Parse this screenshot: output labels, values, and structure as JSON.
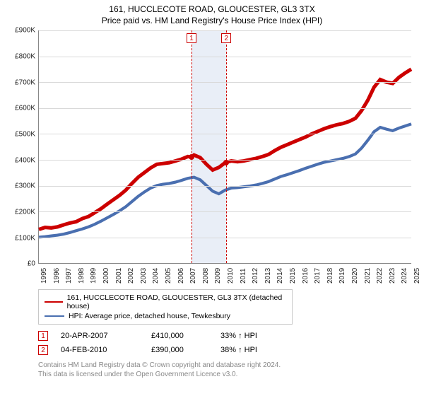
{
  "title": {
    "address": "161, HUCCLECOTE ROAD, GLOUCESTER, GL3 3TX",
    "subtitle": "Price paid vs. HM Land Registry's House Price Index (HPI)"
  },
  "chart": {
    "type": "line",
    "background_color": "#ffffff",
    "grid_color": "#d9d9d9",
    "axis_color": "#888888",
    "ylabel_prefix": "£",
    "ylim": [
      0,
      900
    ],
    "ytick_step": 100,
    "yticks_labels": [
      "£0",
      "£100K",
      "£200K",
      "£300K",
      "£400K",
      "£500K",
      "£600K",
      "£700K",
      "£800K",
      "£900K"
    ],
    "xlim": [
      1995,
      2025
    ],
    "xticks": [
      1995,
      1996,
      1997,
      1998,
      1999,
      2000,
      2001,
      2002,
      2003,
      2004,
      2005,
      2006,
      2007,
      2008,
      2009,
      2010,
      2011,
      2012,
      2013,
      2014,
      2015,
      2016,
      2017,
      2018,
      2019,
      2020,
      2021,
      2022,
      2023,
      2024,
      2025
    ],
    "tick_fontsize": 10,
    "series": [
      {
        "name": "161, HUCCLECOTE ROAD, GLOUCESTER, GL3 3TX (detached house)",
        "color": "#cc0000",
        "line_width": 1.6,
        "data": [
          [
            1995,
            130
          ],
          [
            1995.5,
            138
          ],
          [
            1996,
            136
          ],
          [
            1996.5,
            140
          ],
          [
            1997,
            148
          ],
          [
            1997.5,
            155
          ],
          [
            1998,
            160
          ],
          [
            1998.5,
            172
          ],
          [
            1999,
            180
          ],
          [
            1999.5,
            195
          ],
          [
            2000,
            210
          ],
          [
            2000.5,
            228
          ],
          [
            2001,
            245
          ],
          [
            2001.5,
            262
          ],
          [
            2002,
            282
          ],
          [
            2002.5,
            308
          ],
          [
            2003,
            332
          ],
          [
            2003.5,
            350
          ],
          [
            2004,
            368
          ],
          [
            2004.5,
            382
          ],
          [
            2005,
            385
          ],
          [
            2005.5,
            388
          ],
          [
            2006,
            395
          ],
          [
            2006.5,
            402
          ],
          [
            2007,
            412
          ],
          [
            2007.3,
            410
          ],
          [
            2007.5,
            418
          ],
          [
            2008,
            408
          ],
          [
            2008.5,
            382
          ],
          [
            2009,
            360
          ],
          [
            2009.5,
            370
          ],
          [
            2010,
            388
          ],
          [
            2010.1,
            390
          ],
          [
            2010.5,
            395
          ],
          [
            2011,
            392
          ],
          [
            2011.5,
            395
          ],
          [
            2012,
            400
          ],
          [
            2012.5,
            405
          ],
          [
            2013,
            412
          ],
          [
            2013.5,
            420
          ],
          [
            2014,
            435
          ],
          [
            2014.5,
            448
          ],
          [
            2015,
            458
          ],
          [
            2015.5,
            468
          ],
          [
            2016,
            478
          ],
          [
            2016.5,
            488
          ],
          [
            2017,
            500
          ],
          [
            2017.5,
            510
          ],
          [
            2018,
            520
          ],
          [
            2018.5,
            528
          ],
          [
            2019,
            535
          ],
          [
            2019.5,
            540
          ],
          [
            2020,
            548
          ],
          [
            2020.5,
            560
          ],
          [
            2021,
            590
          ],
          [
            2021.5,
            630
          ],
          [
            2022,
            680
          ],
          [
            2022.5,
            710
          ],
          [
            2023,
            700
          ],
          [
            2023.5,
            695
          ],
          [
            2024,
            718
          ],
          [
            2024.5,
            735
          ],
          [
            2025,
            750
          ]
        ]
      },
      {
        "name": "HPI: Average price, detached house, Tewkesbury",
        "color": "#4a6fb0",
        "line_width": 1.3,
        "data": [
          [
            1995,
            100
          ],
          [
            1995.5,
            102
          ],
          [
            1996,
            105
          ],
          [
            1996.5,
            108
          ],
          [
            1997,
            112
          ],
          [
            1997.5,
            118
          ],
          [
            1998,
            125
          ],
          [
            1998.5,
            132
          ],
          [
            1999,
            140
          ],
          [
            1999.5,
            150
          ],
          [
            2000,
            162
          ],
          [
            2000.5,
            175
          ],
          [
            2001,
            188
          ],
          [
            2001.5,
            202
          ],
          [
            2002,
            218
          ],
          [
            2002.5,
            238
          ],
          [
            2003,
            258
          ],
          [
            2003.5,
            275
          ],
          [
            2004,
            290
          ],
          [
            2004.5,
            300
          ],
          [
            2005,
            305
          ],
          [
            2005.5,
            308
          ],
          [
            2006,
            313
          ],
          [
            2006.5,
            320
          ],
          [
            2007,
            328
          ],
          [
            2007.5,
            332
          ],
          [
            2008,
            322
          ],
          [
            2008.5,
            300
          ],
          [
            2009,
            278
          ],
          [
            2009.5,
            268
          ],
          [
            2010,
            282
          ],
          [
            2010.5,
            290
          ],
          [
            2011,
            292
          ],
          [
            2011.5,
            295
          ],
          [
            2012,
            298
          ],
          [
            2012.5,
            302
          ],
          [
            2013,
            308
          ],
          [
            2013.5,
            315
          ],
          [
            2014,
            325
          ],
          [
            2014.5,
            335
          ],
          [
            2015,
            342
          ],
          [
            2015.5,
            350
          ],
          [
            2016,
            358
          ],
          [
            2016.5,
            367
          ],
          [
            2017,
            375
          ],
          [
            2017.5,
            383
          ],
          [
            2018,
            390
          ],
          [
            2018.5,
            395
          ],
          [
            2019,
            400
          ],
          [
            2019.5,
            405
          ],
          [
            2020,
            412
          ],
          [
            2020.5,
            422
          ],
          [
            2021,
            445
          ],
          [
            2021.5,
            475
          ],
          [
            2022,
            508
          ],
          [
            2022.5,
            525
          ],
          [
            2023,
            518
          ],
          [
            2023.5,
            512
          ],
          [
            2024,
            522
          ],
          [
            2024.5,
            530
          ],
          [
            2025,
            538
          ]
        ]
      }
    ],
    "shaded_band": {
      "x_from": 2007.3,
      "x_to": 2010.1,
      "fill": "#e9eef7"
    },
    "event_markers": [
      {
        "num": "1",
        "x": 2007.3,
        "y": 410,
        "dot_color": "#cc0000"
      },
      {
        "num": "2",
        "x": 2010.1,
        "y": 390,
        "dot_color": "#cc0000"
      }
    ]
  },
  "legend": {
    "items": [
      {
        "color": "#cc0000",
        "label": "161, HUCCLECOTE ROAD, GLOUCESTER, GL3 3TX (detached house)"
      },
      {
        "color": "#4a6fb0",
        "label": "HPI: Average price, detached house, Tewkesbury"
      }
    ]
  },
  "events": [
    {
      "num": "1",
      "date": "20-APR-2007",
      "price": "£410,000",
      "delta": "33% ↑ HPI"
    },
    {
      "num": "2",
      "date": "04-FEB-2010",
      "price": "£390,000",
      "delta": "38% ↑ HPI"
    }
  ],
  "footer": {
    "line1": "Contains HM Land Registry data © Crown copyright and database right 2024.",
    "line2": "This data is licensed under the Open Government Licence v3.0."
  }
}
